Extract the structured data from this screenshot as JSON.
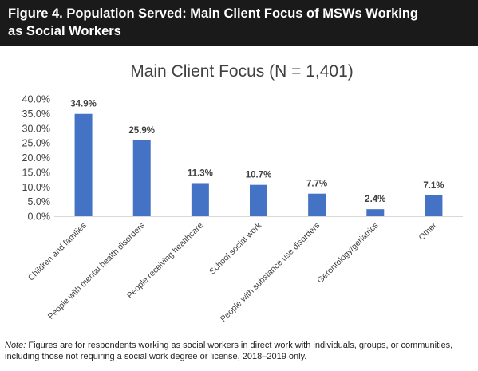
{
  "figure": {
    "title_line1": "Figure 4. Population Served: Main Client Focus of MSWs Working",
    "title_line2": "as Social Workers"
  },
  "note": {
    "label": "Note:",
    "text": "Figures are for respondents working as social workers in direct work with individuals, groups, or communities, including those not requiring a social work degree or license, 2018–2019 only."
  },
  "chart_data": {
    "type": "bar",
    "title": "Main Client Focus (N = 1,401)",
    "categories": [
      "Children and families",
      "People with mental health disorders",
      "People receiving healthcare",
      "School social work",
      "People with substance use disorders",
      "Gerontology/geriatrics",
      "Other"
    ],
    "values": [
      34.9,
      25.9,
      11.3,
      10.7,
      7.7,
      2.4,
      7.1
    ],
    "data_labels": [
      "34.9%",
      "25.9%",
      "11.3%",
      "10.7%",
      "7.7%",
      "2.4%",
      "7.1%"
    ],
    "y_ticks": [
      "0.0%",
      "5.0%",
      "10.0%",
      "15.0%",
      "20.0%",
      "25.0%",
      "30.0%",
      "35.0%",
      "40.0%"
    ],
    "ylim": [
      0,
      40
    ],
    "bar_color": "#4472c4",
    "grid": false,
    "legend": "none"
  }
}
